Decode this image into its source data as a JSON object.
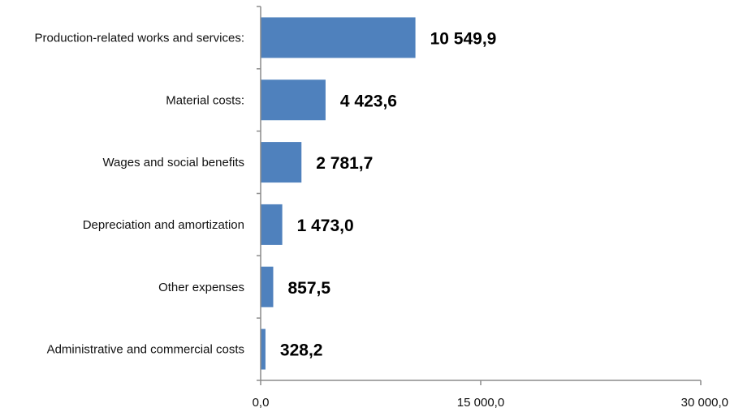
{
  "chart_data": {
    "type": "bar",
    "orientation": "horizontal",
    "categories": [
      "Production-related works and services:",
      "Material costs:",
      "Wages and social benefits",
      "Depreciation and amortization",
      "Other expenses",
      "Administrative and commercial costs"
    ],
    "values": [
      10549.9,
      4423.6,
      2781.7,
      1473.0,
      857.5,
      328.2
    ],
    "value_labels": [
      "10 549,9",
      "4 423,6",
      "2 781,7",
      "1 473,0",
      "857,5",
      "328,2"
    ],
    "xlim": [
      0,
      30000
    ],
    "xticks": [
      0,
      15000,
      30000
    ],
    "xtick_labels": [
      "0,0",
      "15 000,0",
      "30 000,0"
    ],
    "title": "",
    "xlabel": "",
    "ylabel": "",
    "grid": false,
    "legend": "none",
    "bar_color": "#4f81bd",
    "axis_color": "#8c8c8c"
  }
}
